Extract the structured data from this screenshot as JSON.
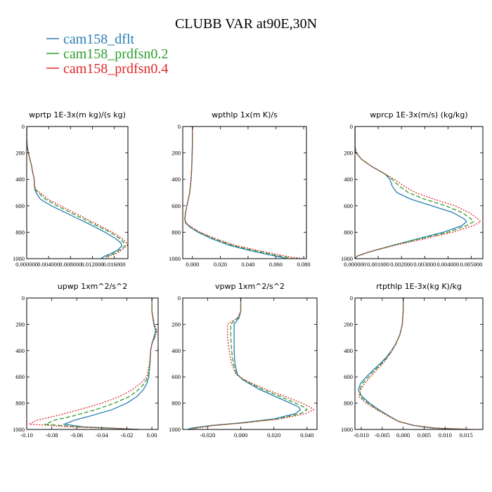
{
  "figure": {
    "title": "CLUBB VAR at90E,30N"
  },
  "legend": [
    {
      "name": "cam158_dflt",
      "color": "#2a7db5",
      "dash": "solid"
    },
    {
      "name": "cam158_prdfsn0.2",
      "color": "#2ca02c",
      "dash": "dashed"
    },
    {
      "name": "cam158_prdfsn0.4",
      "color": "#e3262b",
      "dash": "dotted"
    }
  ],
  "chart_data": [
    {
      "type": "line",
      "title": "wprtp  1E-3x(m kg)/(s kg)",
      "xlim": [
        0,
        0.0185
      ],
      "ylim": [
        1000,
        0
      ],
      "xticks": [
        0,
        0.004,
        0.008,
        0.012,
        0.016
      ],
      "xtick_labels": [
        "0.000000",
        "0.004000",
        "0.008000",
        "0.012000",
        "0.016000"
      ],
      "yticks": [
        0,
        200,
        400,
        600,
        800,
        1000
      ],
      "y": [
        0,
        100,
        150,
        200,
        250,
        300,
        350,
        380,
        420,
        450,
        480,
        500,
        550,
        600,
        650,
        700,
        750,
        800,
        850,
        880,
        900,
        930,
        960,
        980,
        1000
      ],
      "series": [
        {
          "name": "cam158_dflt",
          "values": [
            0,
            0,
            0.0001,
            0.0003,
            0.0006,
            0.0009,
            0.0011,
            0.0013,
            0.0014,
            0.0014,
            0.0015,
            0.0017,
            0.0025,
            0.0045,
            0.007,
            0.0095,
            0.012,
            0.0143,
            0.0163,
            0.0172,
            0.0174,
            0.0168,
            0.0155,
            0.0143,
            0.0135
          ]
        },
        {
          "name": "cam158_prdfsn0.2",
          "values": [
            0,
            0,
            0.0001,
            0.0003,
            0.0006,
            0.0009,
            0.0011,
            0.0013,
            0.0014,
            0.0014,
            0.0016,
            0.0021,
            0.0034,
            0.0055,
            0.008,
            0.0104,
            0.0128,
            0.0152,
            0.0171,
            0.0178,
            0.018,
            0.0172,
            0.016,
            0.0148,
            0.014
          ]
        },
        {
          "name": "cam158_prdfsn0.4",
          "values": [
            0,
            0,
            0.0001,
            0.0003,
            0.0006,
            0.0009,
            0.0011,
            0.0013,
            0.0014,
            0.0014,
            0.0018,
            0.0024,
            0.0039,
            0.0062,
            0.0086,
            0.011,
            0.0133,
            0.0157,
            0.0175,
            0.0182,
            0.0184,
            0.0175,
            0.0165,
            0.0152,
            0.0145
          ]
        }
      ]
    },
    {
      "type": "line",
      "title": "wpthlp  1x(m K)/s",
      "xlim": [
        -0.007,
        0.082
      ],
      "ylim": [
        1000,
        0
      ],
      "xticks": [
        0,
        0.02,
        0.04,
        0.06,
        0.08
      ],
      "xtick_labels": [
        "0.000",
        "0.020",
        "0.040",
        "0.060",
        "0.080"
      ],
      "yticks": [
        0,
        200,
        400,
        600,
        800,
        1000
      ],
      "y": [
        0,
        100,
        200,
        300,
        400,
        500,
        550,
        600,
        650,
        700,
        730,
        760,
        800,
        850,
        900,
        940,
        970,
        990,
        1000
      ],
      "series": [
        {
          "name": "cam158_dflt",
          "values": [
            0.0,
            0.0,
            -0.0002,
            -0.0005,
            -0.001,
            -0.002,
            -0.003,
            -0.004,
            -0.005,
            -0.0055,
            -0.005,
            -0.002,
            0.004,
            0.014,
            0.027,
            0.042,
            0.055,
            0.064,
            0.068
          ]
        },
        {
          "name": "cam158_prdfsn0.2",
          "values": [
            0.0,
            0.0,
            -0.0002,
            -0.0005,
            -0.001,
            -0.002,
            -0.003,
            -0.004,
            -0.005,
            -0.0055,
            -0.0048,
            -0.0015,
            0.0048,
            0.0155,
            0.029,
            0.045,
            0.058,
            0.068,
            0.072
          ]
        },
        {
          "name": "cam158_prdfsn0.4",
          "values": [
            0.0,
            0.0,
            -0.0002,
            -0.0005,
            -0.001,
            -0.002,
            -0.003,
            -0.004,
            -0.005,
            -0.0055,
            -0.0045,
            -0.001,
            0.0055,
            0.017,
            0.031,
            0.048,
            0.062,
            0.072,
            0.079
          ]
        }
      ]
    },
    {
      "type": "line",
      "title": "wprcp  1E-3x(m/s) (kg/kg)",
      "xlim": [
        0,
        0.0055
      ],
      "ylim": [
        1000,
        0
      ],
      "xticks": [
        0,
        0.001,
        0.002,
        0.003,
        0.004,
        0.005
      ],
      "xtick_labels": [
        "0.000000",
        "0.001000",
        "0.002000",
        "0.003000",
        "0.004000",
        "0.005000"
      ],
      "yticks": [
        0,
        200,
        400,
        600,
        800,
        1000
      ],
      "y": [
        0,
        150,
        200,
        250,
        300,
        330,
        360,
        400,
        450,
        500,
        550,
        600,
        650,
        700,
        720,
        750,
        800,
        850,
        900,
        950,
        980,
        1000
      ],
      "series": [
        {
          "name": "cam158_dflt",
          "values": [
            0,
            0,
            5e-05,
            0.0003,
            0.0007,
            0.001,
            0.0013,
            0.0015,
            0.0016,
            0.0018,
            0.0024,
            0.0033,
            0.0042,
            0.0047,
            0.0048,
            0.0046,
            0.0038,
            0.0027,
            0.0016,
            0.0006,
            0.0001,
            0
          ]
        },
        {
          "name": "cam158_prdfsn0.2",
          "values": [
            0,
            0,
            5e-05,
            0.0003,
            0.0007,
            0.001,
            0.0013,
            0.0016,
            0.0019,
            0.0023,
            0.003,
            0.0039,
            0.0046,
            0.005,
            0.0051,
            0.0048,
            0.004,
            0.0028,
            0.0016,
            0.0006,
            0.0001,
            0
          ]
        },
        {
          "name": "cam158_prdfsn0.4",
          "values": [
            0,
            0,
            5e-05,
            0.0003,
            0.0007,
            0.001,
            0.0013,
            0.0017,
            0.0021,
            0.0026,
            0.0034,
            0.0043,
            0.0049,
            0.0053,
            0.0054,
            0.0051,
            0.0042,
            0.003,
            0.0017,
            0.0006,
            0.0001,
            0
          ]
        }
      ]
    },
    {
      "type": "line",
      "title": "upwp  1xm^2/s^2",
      "xlim": [
        -0.1,
        0.005
      ],
      "ylim": [
        1000,
        0
      ],
      "xticks": [
        -0.1,
        -0.08,
        -0.06,
        -0.04,
        -0.02,
        0
      ],
      "xtick_labels": [
        "-0.10",
        "-0.08",
        "-0.06",
        "-0.04",
        "-0.02",
        "0.00"
      ],
      "yticks": [
        0,
        200,
        400,
        600,
        800,
        1000
      ],
      "y": [
        0,
        100,
        200,
        250,
        300,
        350,
        400,
        500,
        600,
        650,
        700,
        750,
        800,
        850,
        900,
        930,
        960,
        980,
        1000
      ],
      "series": [
        {
          "name": "cam158_dflt",
          "values": [
            0,
            0,
            0.0015,
            0.003,
            0.0015,
            0,
            -0.001,
            -0.0015,
            -0.0025,
            -0.004,
            -0.007,
            -0.012,
            -0.02,
            -0.032,
            -0.05,
            -0.062,
            -0.07,
            -0.055,
            -0.01
          ]
        },
        {
          "name": "cam158_prdfsn0.2",
          "values": [
            0,
            0,
            0.0018,
            0.0035,
            0.002,
            0,
            -0.001,
            -0.0015,
            -0.003,
            -0.006,
            -0.011,
            -0.018,
            -0.03,
            -0.045,
            -0.064,
            -0.078,
            -0.085,
            -0.06,
            -0.01
          ]
        },
        {
          "name": "cam158_prdfsn0.4",
          "values": [
            0,
            0,
            0.002,
            0.004,
            0.0025,
            0,
            -0.001,
            -0.002,
            -0.004,
            -0.009,
            -0.016,
            -0.026,
            -0.04,
            -0.058,
            -0.078,
            -0.092,
            -0.098,
            -0.065,
            -0.01
          ]
        }
      ]
    },
    {
      "type": "line",
      "title": "vpwp  1xm^2/s^2",
      "xlim": [
        -0.035,
        0.046
      ],
      "ylim": [
        1000,
        0
      ],
      "xticks": [
        -0.02,
        0,
        0.02,
        0.04
      ],
      "xtick_labels": [
        "-0.020",
        "0.000",
        "0.020",
        "0.040"
      ],
      "yticks": [
        0,
        200,
        400,
        600,
        800,
        1000
      ],
      "y": [
        0,
        100,
        150,
        200,
        250,
        300,
        400,
        500,
        580,
        620,
        650,
        700,
        750,
        800,
        830,
        850,
        880,
        920,
        950,
        970,
        990,
        1000
      ],
      "series": [
        {
          "name": "cam158_dflt",
          "values": [
            0,
            0,
            -0.001,
            -0.004,
            -0.004,
            -0.004,
            -0.004,
            -0.0035,
            -0.002,
            0.001,
            0.005,
            0.012,
            0.021,
            0.03,
            0.035,
            0.036,
            0.033,
            0.02,
            0,
            -0.018,
            -0.03,
            -0.032
          ]
        },
        {
          "name": "cam158_prdfsn0.2",
          "values": [
            0,
            0,
            -0.0015,
            -0.006,
            -0.006,
            -0.006,
            -0.0055,
            -0.0045,
            -0.0025,
            0.0015,
            0.006,
            0.014,
            0.024,
            0.033,
            0.038,
            0.04,
            0.036,
            0.022,
            0.001,
            -0.017,
            -0.028,
            -0.031
          ]
        },
        {
          "name": "cam158_prdfsn0.4",
          "values": [
            0,
            0,
            -0.002,
            -0.008,
            -0.008,
            -0.008,
            -0.007,
            -0.0055,
            -0.003,
            0.002,
            0.007,
            0.016,
            0.027,
            0.037,
            0.042,
            0.044,
            0.039,
            0.024,
            0.002,
            -0.016,
            -0.027,
            -0.03
          ]
        }
      ]
    },
    {
      "type": "line",
      "title": "rtpthlp  1E-3x(kg K)/kg",
      "xlim": [
        -0.0115,
        0.019
      ],
      "ylim": [
        1000,
        0
      ],
      "xticks": [
        -0.01,
        -0.005,
        0,
        0.005,
        0.01,
        0.015
      ],
      "xtick_labels": [
        "-0.010",
        "-0.005",
        "0.000",
        "0.005",
        "0.010",
        "0.015"
      ],
      "yticks": [
        0,
        200,
        400,
        600,
        800,
        1000
      ],
      "y": [
        0,
        100,
        200,
        280,
        350,
        400,
        450,
        500,
        550,
        600,
        650,
        700,
        750,
        800,
        850,
        900,
        940,
        970,
        990,
        1000
      ],
      "series": [
        {
          "name": "cam158_dflt",
          "values": [
            0,
            0,
            -0.0002,
            -0.0008,
            -0.0018,
            -0.0028,
            -0.004,
            -0.0055,
            -0.0072,
            -0.0088,
            -0.0102,
            -0.0107,
            -0.0098,
            -0.008,
            -0.0058,
            -0.0032,
            -0.001,
            0.0025,
            0.007,
            0.015
          ]
        },
        {
          "name": "cam158_prdfsn0.2",
          "values": [
            0,
            0,
            -0.0002,
            -0.0008,
            -0.0018,
            -0.0027,
            -0.0038,
            -0.0052,
            -0.0068,
            -0.0083,
            -0.0097,
            -0.0104,
            -0.0102,
            -0.0084,
            -0.006,
            -0.0033,
            -0.001,
            0.0026,
            0.0075,
            0.016
          ]
        },
        {
          "name": "cam158_prdfsn0.4",
          "values": [
            0,
            0,
            -0.0002,
            -0.0008,
            -0.0017,
            -0.0026,
            -0.0036,
            -0.0049,
            -0.0064,
            -0.0078,
            -0.0092,
            -0.0101,
            -0.0106,
            -0.0088,
            -0.0063,
            -0.0035,
            -0.0011,
            0.0027,
            0.008,
            0.017
          ]
        }
      ]
    }
  ]
}
